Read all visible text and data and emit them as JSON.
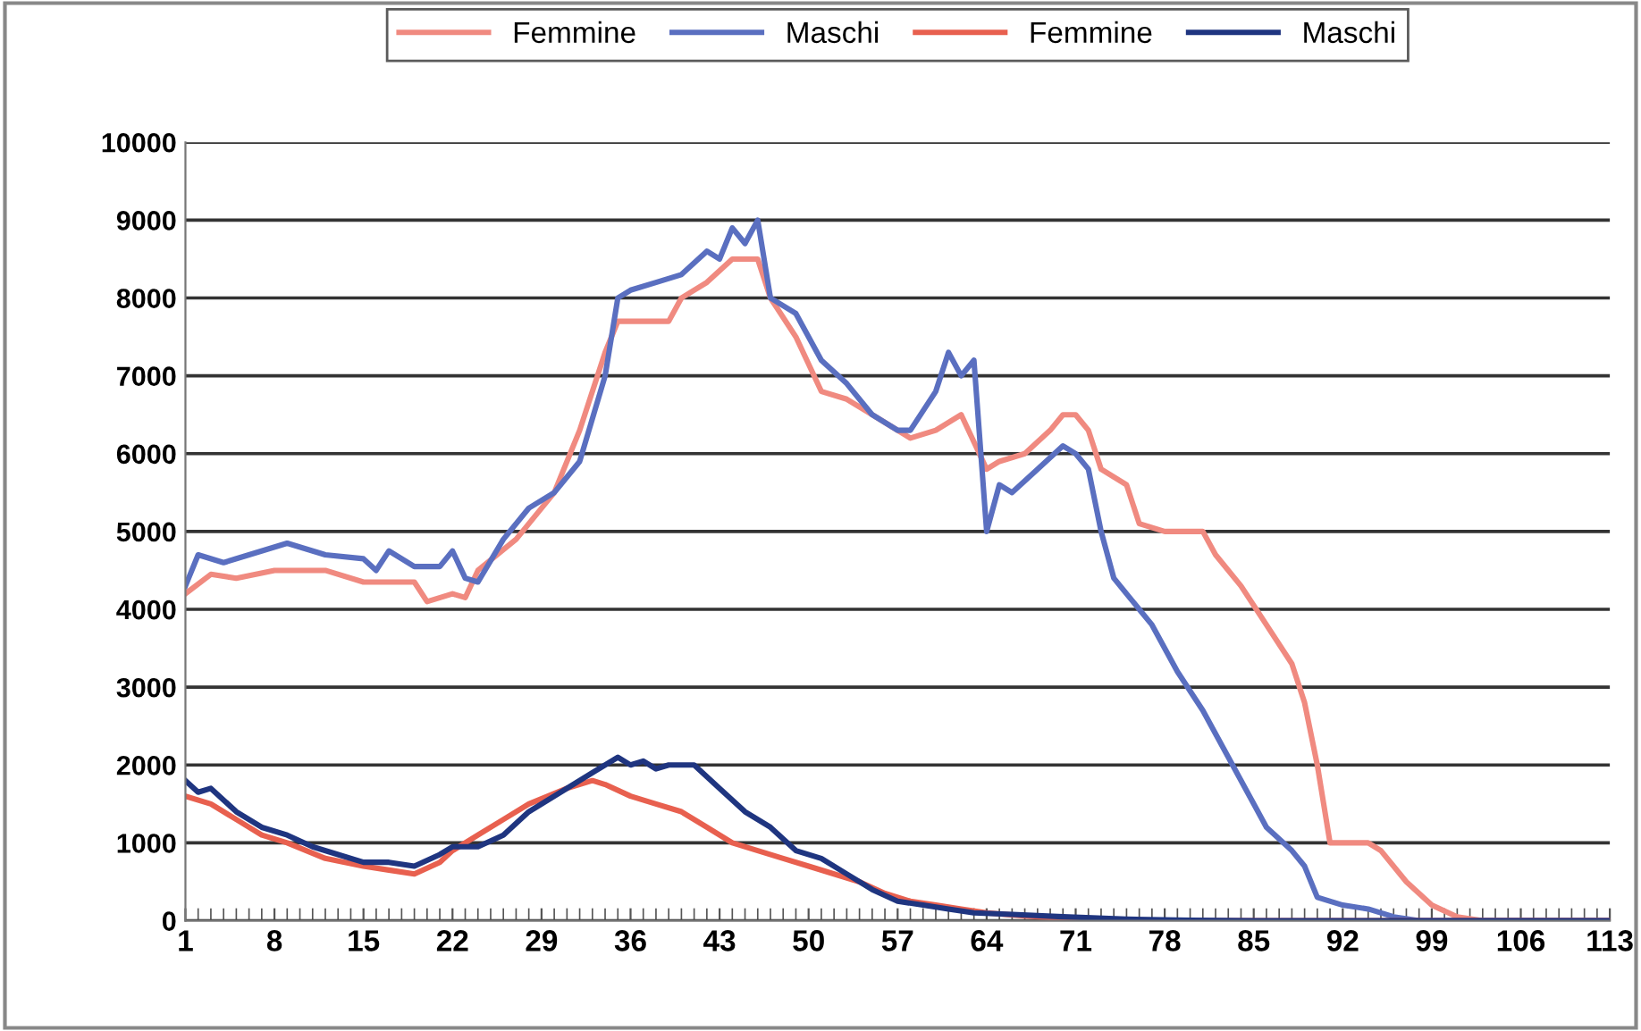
{
  "chart_data": {
    "type": "line",
    "legend": "top",
    "grid": "y",
    "xlim": [
      1,
      113
    ],
    "xticks": [
      1,
      8,
      15,
      22,
      29,
      36,
      43,
      50,
      57,
      64,
      71,
      78,
      85,
      92,
      99,
      106,
      113
    ],
    "ylim": [
      0,
      10000
    ],
    "yticks": [
      0,
      1000,
      2000,
      3000,
      4000,
      5000,
      6000,
      7000,
      8000,
      9000,
      10000
    ],
    "series": [
      {
        "name": "Femmine",
        "color": "#f08a80",
        "x": [
          1,
          3,
          5,
          8,
          12,
          15,
          19,
          20,
          22,
          23,
          24,
          27,
          30,
          32,
          34,
          35,
          37,
          39,
          40,
          42,
          44,
          46,
          47,
          49,
          51,
          53,
          55,
          58,
          60,
          62,
          64,
          65,
          67,
          69,
          70,
          71,
          72,
          73,
          75,
          76,
          78,
          80,
          81,
          82,
          84,
          86,
          88,
          89,
          90,
          91,
          93,
          94,
          95,
          97,
          99,
          101,
          103,
          113
        ],
        "values": [
          4200,
          4450,
          4400,
          4500,
          4500,
          4350,
          4350,
          4100,
          4200,
          4150,
          4500,
          4900,
          5500,
          6300,
          7300,
          7700,
          7700,
          7700,
          8000,
          8200,
          8500,
          8500,
          8000,
          7500,
          6800,
          6700,
          6500,
          6200,
          6300,
          6500,
          5800,
          5900,
          6000,
          6300,
          6500,
          6500,
          6300,
          5800,
          5600,
          5100,
          5000,
          5000,
          5000,
          4700,
          4300,
          3800,
          3300,
          2800,
          2000,
          1000,
          1000,
          1000,
          900,
          500,
          200,
          50,
          0,
          0
        ]
      },
      {
        "name": "Maschi",
        "color": "#5a6fc0",
        "x": [
          1,
          2,
          4,
          6,
          9,
          12,
          15,
          16,
          17,
          19,
          21,
          22,
          23,
          24,
          26,
          28,
          30,
          32,
          34,
          35,
          36,
          38,
          40,
          42,
          43,
          44,
          45,
          46,
          47,
          49,
          51,
          53,
          55,
          57,
          58,
          60,
          61,
          62,
          63,
          64,
          65,
          66,
          68,
          70,
          71,
          72,
          73,
          74,
          75,
          77,
          79,
          81,
          83,
          85,
          86,
          88,
          89,
          90,
          92,
          94,
          96,
          98,
          113
        ],
        "values": [
          4300,
          4700,
          4600,
          4700,
          4850,
          4700,
          4650,
          4500,
          4750,
          4550,
          4550,
          4750,
          4400,
          4350,
          4900,
          5300,
          5500,
          5900,
          7000,
          8000,
          8100,
          8200,
          8300,
          8600,
          8500,
          8900,
          8700,
          9000,
          8000,
          7800,
          7200,
          6900,
          6500,
          6300,
          6300,
          6800,
          7300,
          7000,
          7200,
          5000,
          5600,
          5500,
          5800,
          6100,
          6000,
          5800,
          5000,
          4400,
          4200,
          3800,
          3200,
          2700,
          2100,
          1500,
          1200,
          900,
          700,
          300,
          200,
          150,
          50,
          0,
          0
        ]
      },
      {
        "name": "Femmine",
        "color": "#e8604f",
        "x": [
          1,
          3,
          5,
          7,
          9,
          12,
          15,
          17,
          19,
          21,
          22,
          24,
          26,
          28,
          31,
          33,
          34,
          36,
          38,
          40,
          42,
          44,
          46,
          48,
          50,
          52,
          54,
          56,
          58,
          60,
          62,
          64,
          67,
          70,
          75,
          80,
          113
        ],
        "values": [
          1600,
          1500,
          1300,
          1100,
          1000,
          800,
          700,
          650,
          600,
          750,
          900,
          1100,
          1300,
          1500,
          1700,
          1800,
          1750,
          1600,
          1500,
          1400,
          1200,
          1000,
          900,
          800,
          700,
          600,
          500,
          350,
          250,
          200,
          150,
          100,
          60,
          30,
          10,
          0,
          0
        ]
      },
      {
        "name": "Maschi",
        "color": "#1f3580",
        "x": [
          1,
          2,
          3,
          5,
          7,
          9,
          11,
          13,
          15,
          17,
          19,
          21,
          22,
          24,
          26,
          28,
          31,
          33,
          35,
          36,
          37,
          38,
          39,
          41,
          43,
          45,
          47,
          49,
          51,
          53,
          55,
          57,
          59,
          61,
          63,
          66,
          70,
          75,
          80,
          85,
          113
        ],
        "values": [
          1800,
          1650,
          1700,
          1400,
          1200,
          1100,
          950,
          850,
          750,
          750,
          700,
          850,
          950,
          950,
          1100,
          1400,
          1700,
          1900,
          2100,
          2000,
          2050,
          1950,
          2000,
          2000,
          1700,
          1400,
          1200,
          900,
          800,
          600,
          400,
          250,
          200,
          150,
          100,
          80,
          50,
          20,
          5,
          0,
          0
        ]
      }
    ]
  }
}
